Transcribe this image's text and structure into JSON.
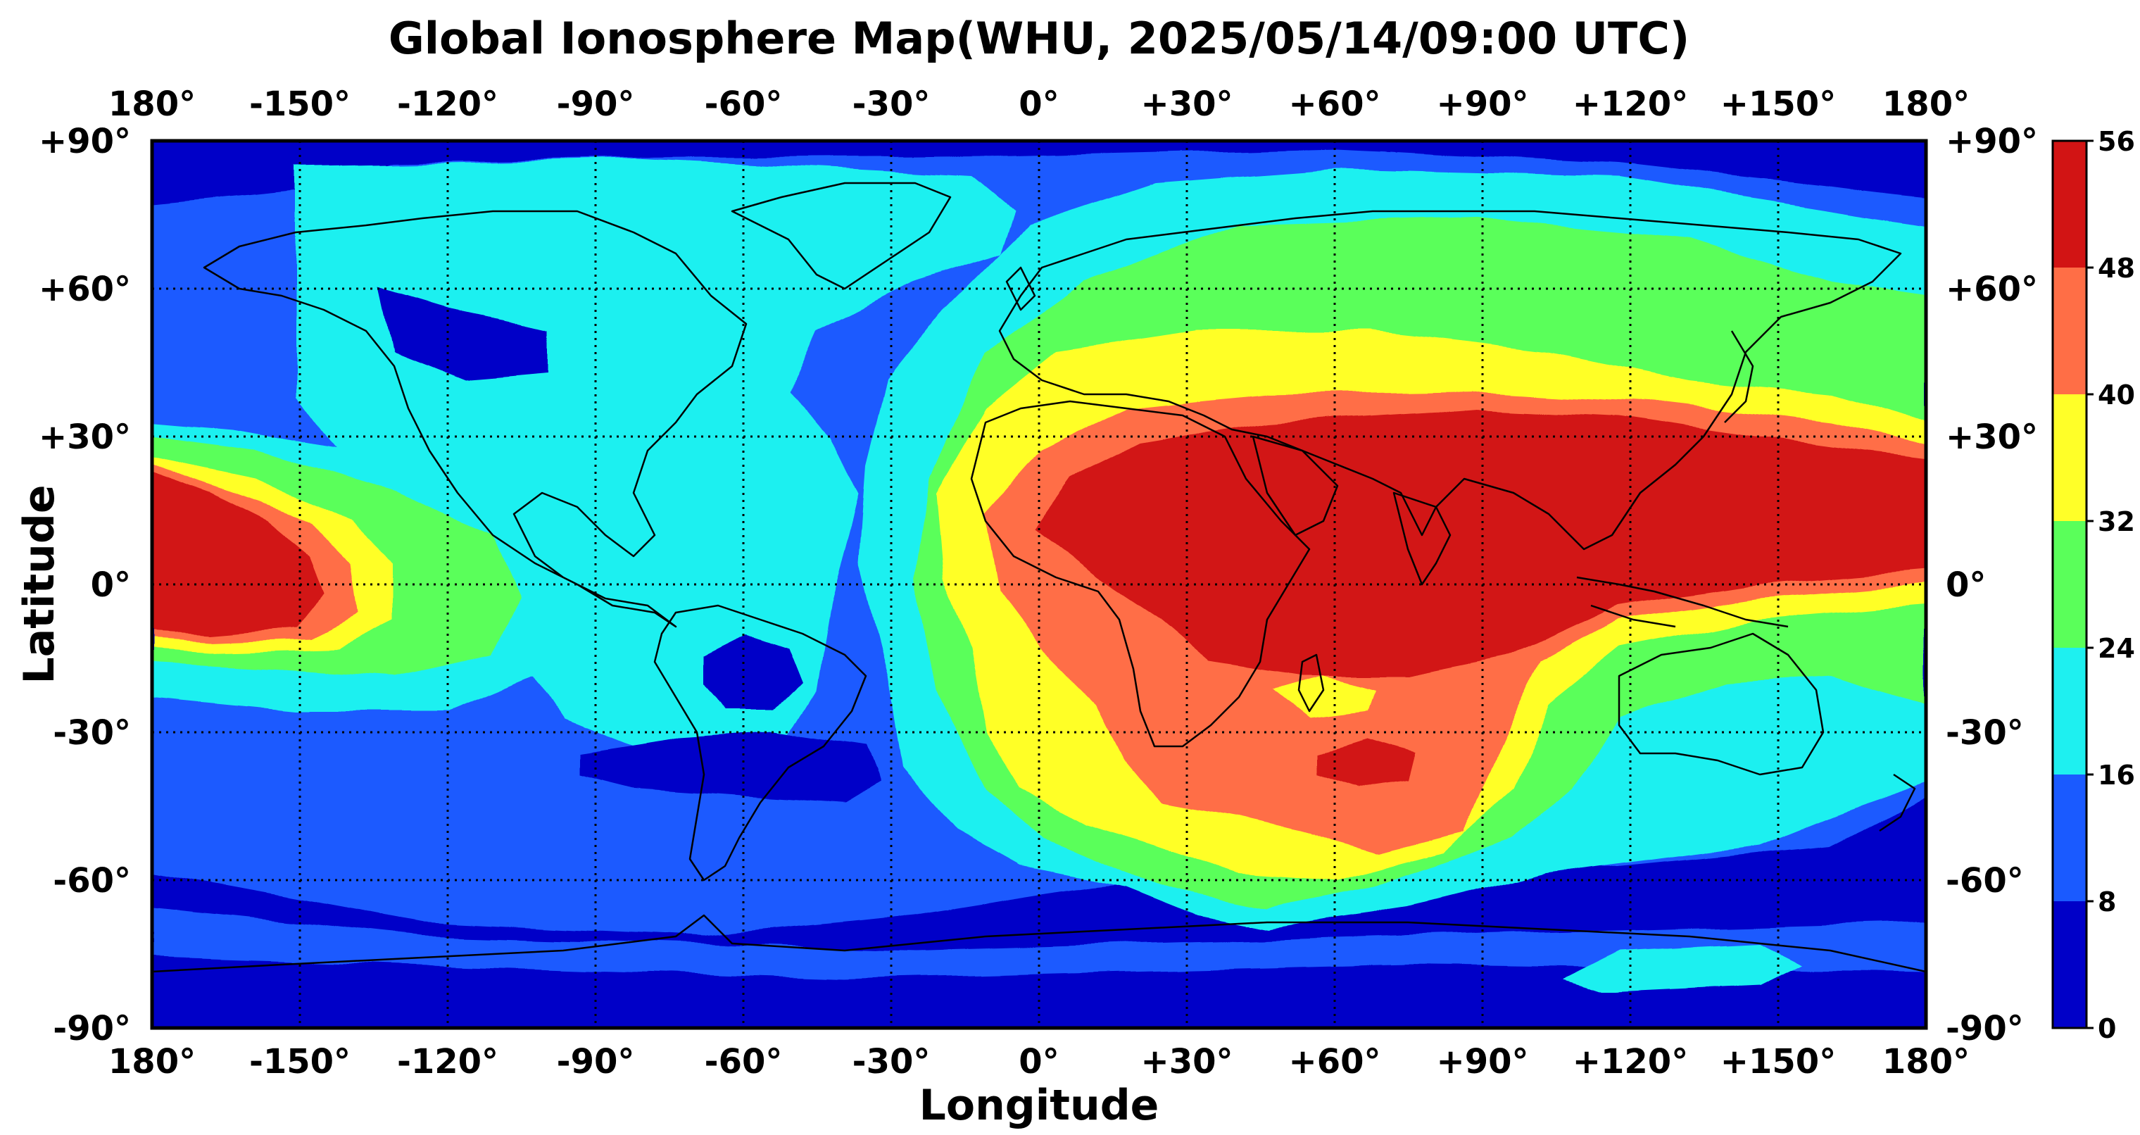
{
  "title": "Global Ionosphere Map(WHU, 2025/05/14/09:00 UTC)",
  "xlabel": "Longitude",
  "ylabel": "Latitude",
  "lon_ticks": [
    "180°",
    "-150°",
    "-120°",
    "-90°",
    "-60°",
    "-30°",
    "0°",
    "+30°",
    "+60°",
    "+90°",
    "+120°",
    "+150°",
    "180°"
  ],
  "lat_ticks": [
    "+90°",
    "+60°",
    "+30°",
    "0°",
    "-30°",
    "-60°",
    "-90°"
  ],
  "colorbar": {
    "labels": [
      "0",
      "8",
      "16",
      "24",
      "32",
      "40",
      "48",
      "56"
    ],
    "colors": [
      "#0000c8",
      "#1a5aff",
      "#1ef0f0",
      "#5aff5a",
      "#ffff28",
      "#ff6e46",
      "#d21414"
    ]
  },
  "grid": "dotted",
  "map_style": {
    "coastline_color": "#000000",
    "frame_color": "#000000"
  }
}
